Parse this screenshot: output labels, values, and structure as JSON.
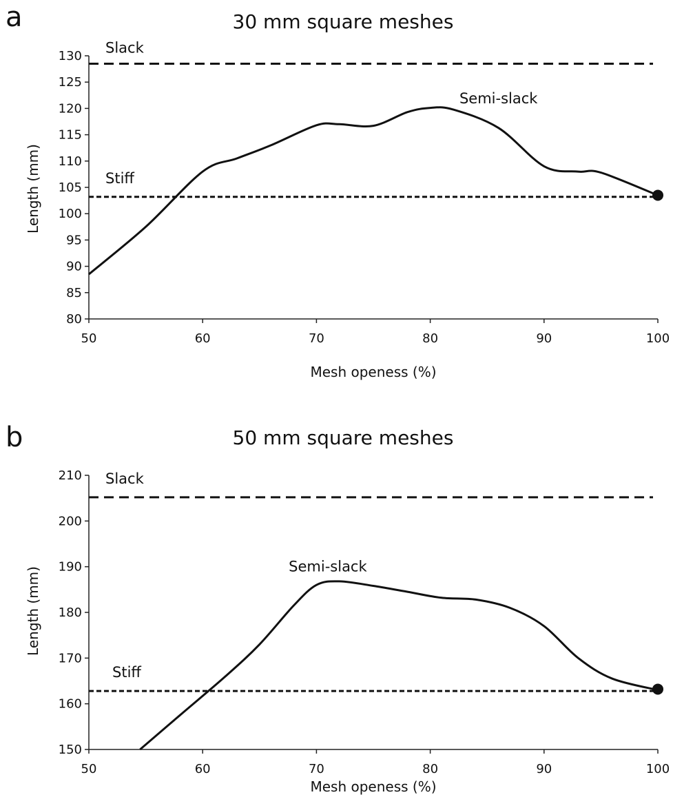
{
  "chart_data": [
    {
      "type": "line",
      "panel": "a",
      "title": "30 mm square meshes",
      "xlabel": "Mesh openess (%)",
      "ylabel": "Length (mm)",
      "xlim": [
        50,
        100
      ],
      "ylim": [
        80,
        130
      ],
      "xticks": [
        50,
        60,
        70,
        80,
        90,
        100
      ],
      "yticks": [
        80,
        85,
        90,
        95,
        100,
        105,
        110,
        115,
        120,
        125,
        130
      ],
      "grid": false,
      "legend": "none",
      "series": [
        {
          "x": [
            50,
            55,
            60,
            63,
            66,
            70,
            72,
            75,
            78,
            80,
            82,
            86,
            90,
            93,
            95,
            100
          ],
          "y": [
            88.5,
            97.5,
            108,
            110.5,
            113,
            116.8,
            117,
            116.7,
            119.3,
            120.1,
            119.8,
            116.3,
            109,
            108,
            107.8,
            103.5
          ],
          "style": "solid"
        }
      ],
      "reference_lines": [
        {
          "label": "Slack",
          "y": 128.5,
          "style": "dashed"
        },
        {
          "label": "Stiff",
          "y": 103.2,
          "style": "dotted"
        }
      ],
      "annotations": [
        {
          "text": "Semi-slack",
          "x": 86,
          "y": 121
        }
      ],
      "endpoint_marker": {
        "x": 100,
        "y": 103.5
      }
    },
    {
      "type": "line",
      "panel": "b",
      "title": "50 mm square meshes",
      "xlabel": "Mesh openess (%)",
      "ylabel": "Length (mm)",
      "xlim": [
        50,
        100
      ],
      "ylim": [
        150,
        210
      ],
      "xticks": [
        50,
        60,
        70,
        80,
        90,
        100
      ],
      "yticks": [
        150,
        160,
        170,
        180,
        190,
        200,
        210
      ],
      "grid": false,
      "legend": "none",
      "series": [
        {
          "x": [
            54.5,
            58,
            62,
            65,
            68,
            70,
            72,
            75,
            78,
            81,
            84,
            87,
            90,
            93,
            96,
            100
          ],
          "y": [
            150,
            157.5,
            166,
            173,
            181.5,
            186,
            186.8,
            185.8,
            184.5,
            183.2,
            182.8,
            181,
            177,
            170,
            165.5,
            163
          ],
          "style": "solid"
        }
      ],
      "reference_lines": [
        {
          "label": "Slack",
          "y": 205.2,
          "style": "dashed"
        },
        {
          "label": "Stiff",
          "y": 162.8,
          "style": "dotted"
        }
      ],
      "annotations": [
        {
          "text": "Semi-slack",
          "x": 71,
          "y": 189
        }
      ],
      "endpoint_marker": {
        "x": 100,
        "y": 163.2
      }
    }
  ]
}
